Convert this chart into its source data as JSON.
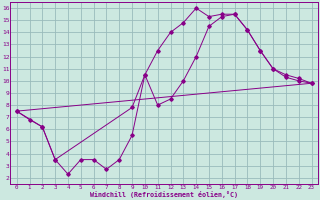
{
  "bg_color": "#cce8e0",
  "line_color": "#880088",
  "grid_color": "#99bbbb",
  "xlabel": "Windchill (Refroidissement éolien,°C)",
  "xlim": [
    -0.5,
    23.5
  ],
  "ylim": [
    1.5,
    16.5
  ],
  "xticks": [
    0,
    1,
    2,
    3,
    4,
    5,
    6,
    7,
    8,
    9,
    10,
    11,
    12,
    13,
    14,
    15,
    16,
    17,
    18,
    19,
    20,
    21,
    22,
    23
  ],
  "yticks": [
    2,
    3,
    4,
    5,
    6,
    7,
    8,
    9,
    10,
    11,
    12,
    13,
    14,
    15,
    16
  ],
  "line1_x": [
    0,
    1,
    2,
    3,
    4,
    5,
    6,
    7,
    8,
    9,
    10,
    11,
    12,
    13,
    14,
    15,
    16,
    17,
    18,
    19,
    20,
    21,
    22,
    23
  ],
  "line1_y": [
    7.5,
    6.8,
    6.2,
    3.5,
    2.3,
    3.5,
    3.5,
    2.7,
    3.5,
    5.5,
    10.5,
    12.5,
    14.0,
    14.8,
    16.0,
    15.3,
    15.5,
    15.5,
    14.2,
    12.5,
    11.0,
    10.3,
    10.0,
    9.8
  ],
  "line2_x": [
    0,
    2,
    3,
    9,
    10,
    11,
    12,
    13,
    14,
    15,
    16,
    17,
    18,
    19,
    20,
    21,
    22,
    23
  ],
  "line2_y": [
    7.5,
    6.2,
    3.5,
    7.8,
    10.5,
    8.0,
    8.5,
    10.0,
    12.0,
    14.5,
    15.3,
    15.5,
    14.2,
    12.5,
    11.0,
    10.5,
    10.2,
    9.8
  ],
  "line3_x": [
    0,
    23
  ],
  "line3_y": [
    7.5,
    9.8
  ]
}
